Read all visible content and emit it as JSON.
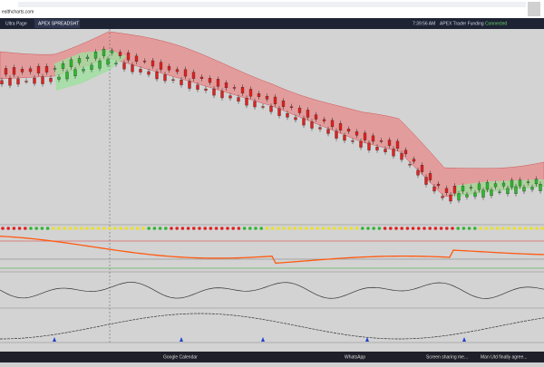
{
  "browser": {
    "url": "ealthcharts.com"
  },
  "toolbar": {
    "tabs": [
      "Ultra Page",
      "APEX SPREADSHT"
    ],
    "time": "7:39:56 AM",
    "account": "APEX Trader Funding",
    "status": "Connected"
  },
  "taskbar": {
    "items": [
      "Google Calendar",
      "WhatsApp",
      "Screen sharing me...",
      "Man Utd finally agree..."
    ]
  }
}
